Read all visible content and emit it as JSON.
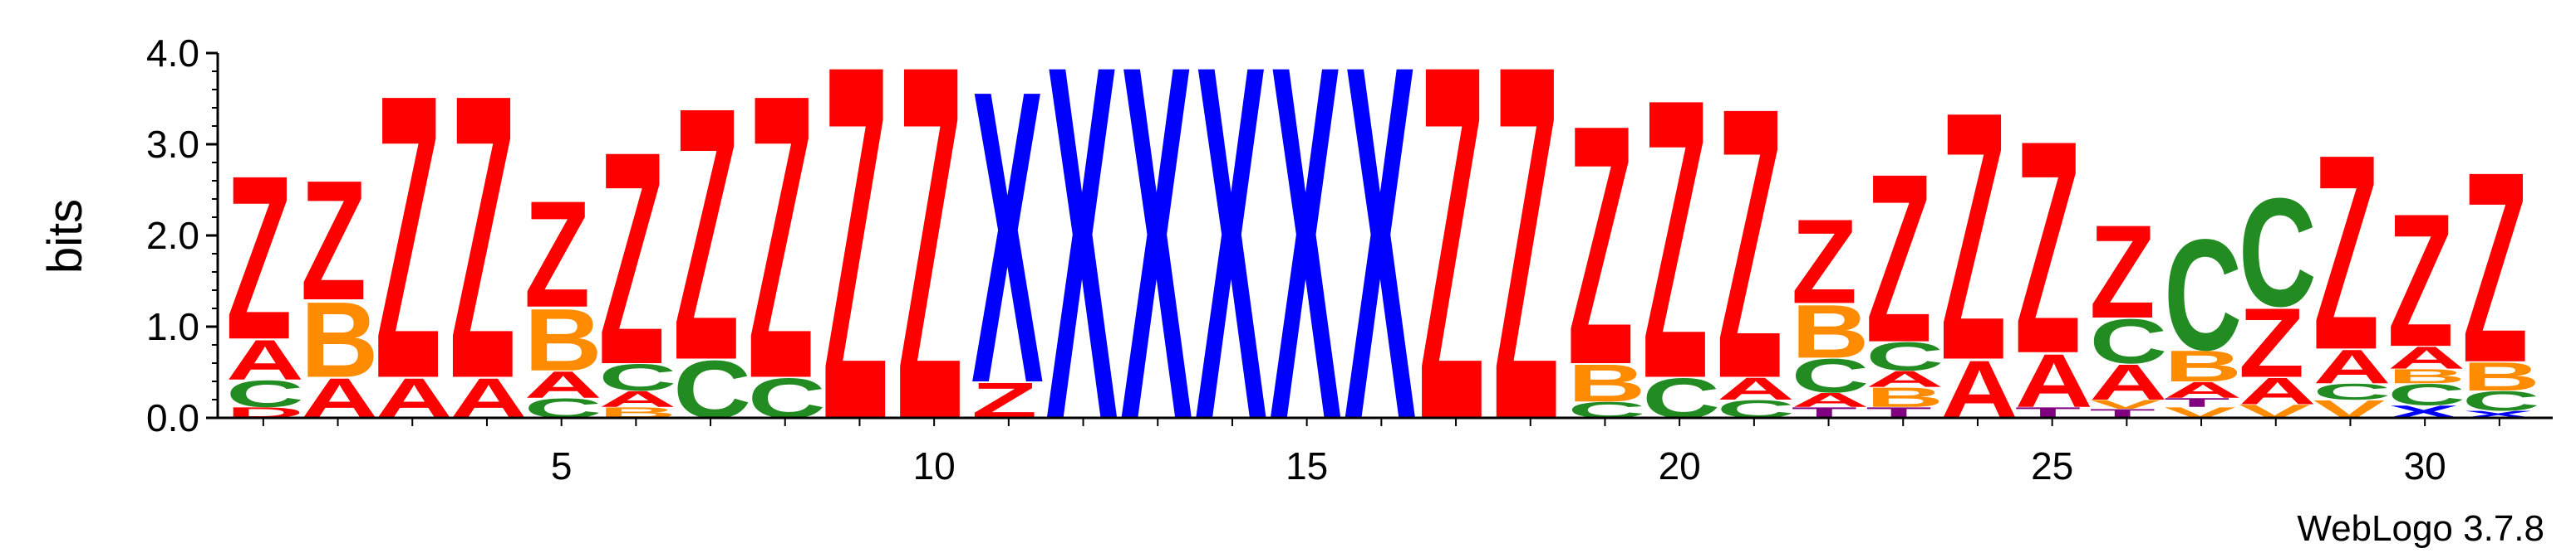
{
  "chart_data": {
    "type": "sequence-logo",
    "ylabel": "bits",
    "ylim": [
      0,
      4.0
    ],
    "y_ticks": [
      "0.0",
      "1.0",
      "2.0",
      "3.0",
      "4.0"
    ],
    "x_ticks": [
      5,
      10,
      15,
      20,
      25,
      30
    ],
    "credit": "WebLogo 3.7.8",
    "colors": {
      "Z": "#ff0000",
      "X": "#0000ff",
      "A": "#ff0000",
      "B": "#ff8c00",
      "C": "#228b22",
      "T": "#800080",
      "V": "#ff8c00",
      "D": "#ff0000"
    },
    "positions": [
      {
        "pos": 1,
        "stack": [
          [
            "D",
            0.12
          ],
          [
            "C",
            0.3
          ],
          [
            "A",
            0.45
          ],
          [
            "Z",
            1.85
          ]
        ]
      },
      {
        "pos": 2,
        "stack": [
          [
            "A",
            0.45
          ],
          [
            "B",
            0.85
          ],
          [
            "Z",
            1.35
          ]
        ]
      },
      {
        "pos": 3,
        "stack": [
          [
            "A",
            0.45
          ],
          [
            "Z",
            3.2
          ]
        ]
      },
      {
        "pos": 4,
        "stack": [
          [
            "A",
            0.45
          ],
          [
            "Z",
            3.2
          ]
        ]
      },
      {
        "pos": 5,
        "stack": [
          [
            "C",
            0.22
          ],
          [
            "A",
            0.3
          ],
          [
            "B",
            0.7
          ],
          [
            "Z",
            1.2
          ]
        ]
      },
      {
        "pos": 6,
        "stack": [
          [
            "B",
            0.12
          ],
          [
            "A",
            0.18
          ],
          [
            "C",
            0.3
          ],
          [
            "Z",
            2.4
          ]
        ]
      },
      {
        "pos": 7,
        "stack": [
          [
            "C",
            0.65
          ],
          [
            "Z",
            2.85
          ]
        ]
      },
      {
        "pos": 8,
        "stack": [
          [
            "C",
            0.45
          ],
          [
            "Z",
            3.2
          ]
        ]
      },
      {
        "pos": 9,
        "stack": [
          [
            "Z",
            4.0
          ]
        ]
      },
      {
        "pos": 10,
        "stack": [
          [
            "Z",
            4.0
          ]
        ]
      },
      {
        "pos": 11,
        "stack": [
          [
            "Z",
            0.4
          ],
          [
            "X",
            3.3
          ]
        ]
      },
      {
        "pos": 12,
        "stack": [
          [
            "X",
            4.0
          ]
        ]
      },
      {
        "pos": 13,
        "stack": [
          [
            "X",
            4.0
          ]
        ]
      },
      {
        "pos": 14,
        "stack": [
          [
            "X",
            4.0
          ]
        ]
      },
      {
        "pos": 15,
        "stack": [
          [
            "X",
            4.0
          ]
        ]
      },
      {
        "pos": 16,
        "stack": [
          [
            "X",
            4.0
          ]
        ]
      },
      {
        "pos": 17,
        "stack": [
          [
            "Z",
            4.0
          ]
        ]
      },
      {
        "pos": 18,
        "stack": [
          [
            "Z",
            4.0
          ]
        ]
      },
      {
        "pos": 19,
        "stack": [
          [
            "C",
            0.18
          ],
          [
            "B",
            0.42
          ],
          [
            "Z",
            2.7
          ]
        ]
      },
      {
        "pos": 20,
        "stack": [
          [
            "C",
            0.45
          ],
          [
            "Z",
            3.15
          ]
        ]
      },
      {
        "pos": 21,
        "stack": [
          [
            "C",
            0.2
          ],
          [
            "A",
            0.25
          ],
          [
            "Z",
            3.05
          ]
        ]
      },
      {
        "pos": 22,
        "stack": [
          [
            "T",
            0.12
          ],
          [
            "A",
            0.16
          ],
          [
            "C",
            0.38
          ],
          [
            "B",
            0.6
          ],
          [
            "Z",
            0.95
          ]
        ]
      },
      {
        "pos": 23,
        "stack": [
          [
            "T",
            0.12
          ],
          [
            "B",
            0.22
          ],
          [
            "A",
            0.18
          ],
          [
            "C",
            0.32
          ],
          [
            "Z",
            1.9
          ]
        ]
      },
      {
        "pos": 24,
        "stack": [
          [
            "A",
            0.65
          ],
          [
            "Z",
            2.8
          ]
        ]
      },
      {
        "pos": 25,
        "stack": [
          [
            "T",
            0.12
          ],
          [
            "A",
            0.6
          ],
          [
            "Z",
            2.4
          ]
        ]
      },
      {
        "pos": 26,
        "stack": [
          [
            "T",
            0.1
          ],
          [
            "V",
            0.1
          ],
          [
            "A",
            0.4
          ],
          [
            "C",
            0.5
          ],
          [
            "Z",
            1.05
          ]
        ]
      },
      {
        "pos": 27,
        "stack": [
          [
            "V",
            0.12
          ],
          [
            "T",
            0.1
          ],
          [
            "A",
            0.18
          ],
          [
            "B",
            0.35
          ],
          [
            "C",
            1.25
          ]
        ]
      },
      {
        "pos": 28,
        "stack": [
          [
            "V",
            0.15
          ],
          [
            "A",
            0.3
          ],
          [
            "Z",
            0.78
          ],
          [
            "C",
            1.22
          ]
        ]
      },
      {
        "pos": 29,
        "stack": [
          [
            "V",
            0.2
          ],
          [
            "C",
            0.18
          ],
          [
            "A",
            0.38
          ],
          [
            "Z",
            2.2
          ]
        ]
      },
      {
        "pos": 30,
        "stack": [
          [
            "X",
            0.14
          ],
          [
            "C",
            0.24
          ],
          [
            "B",
            0.16
          ],
          [
            "A",
            0.25
          ],
          [
            "Z",
            1.5
          ]
        ]
      },
      {
        "pos": 31,
        "stack": [
          [
            "X",
            0.08
          ],
          [
            "C",
            0.22
          ],
          [
            "B",
            0.32
          ],
          [
            "Z",
            2.15
          ]
        ]
      }
    ]
  }
}
